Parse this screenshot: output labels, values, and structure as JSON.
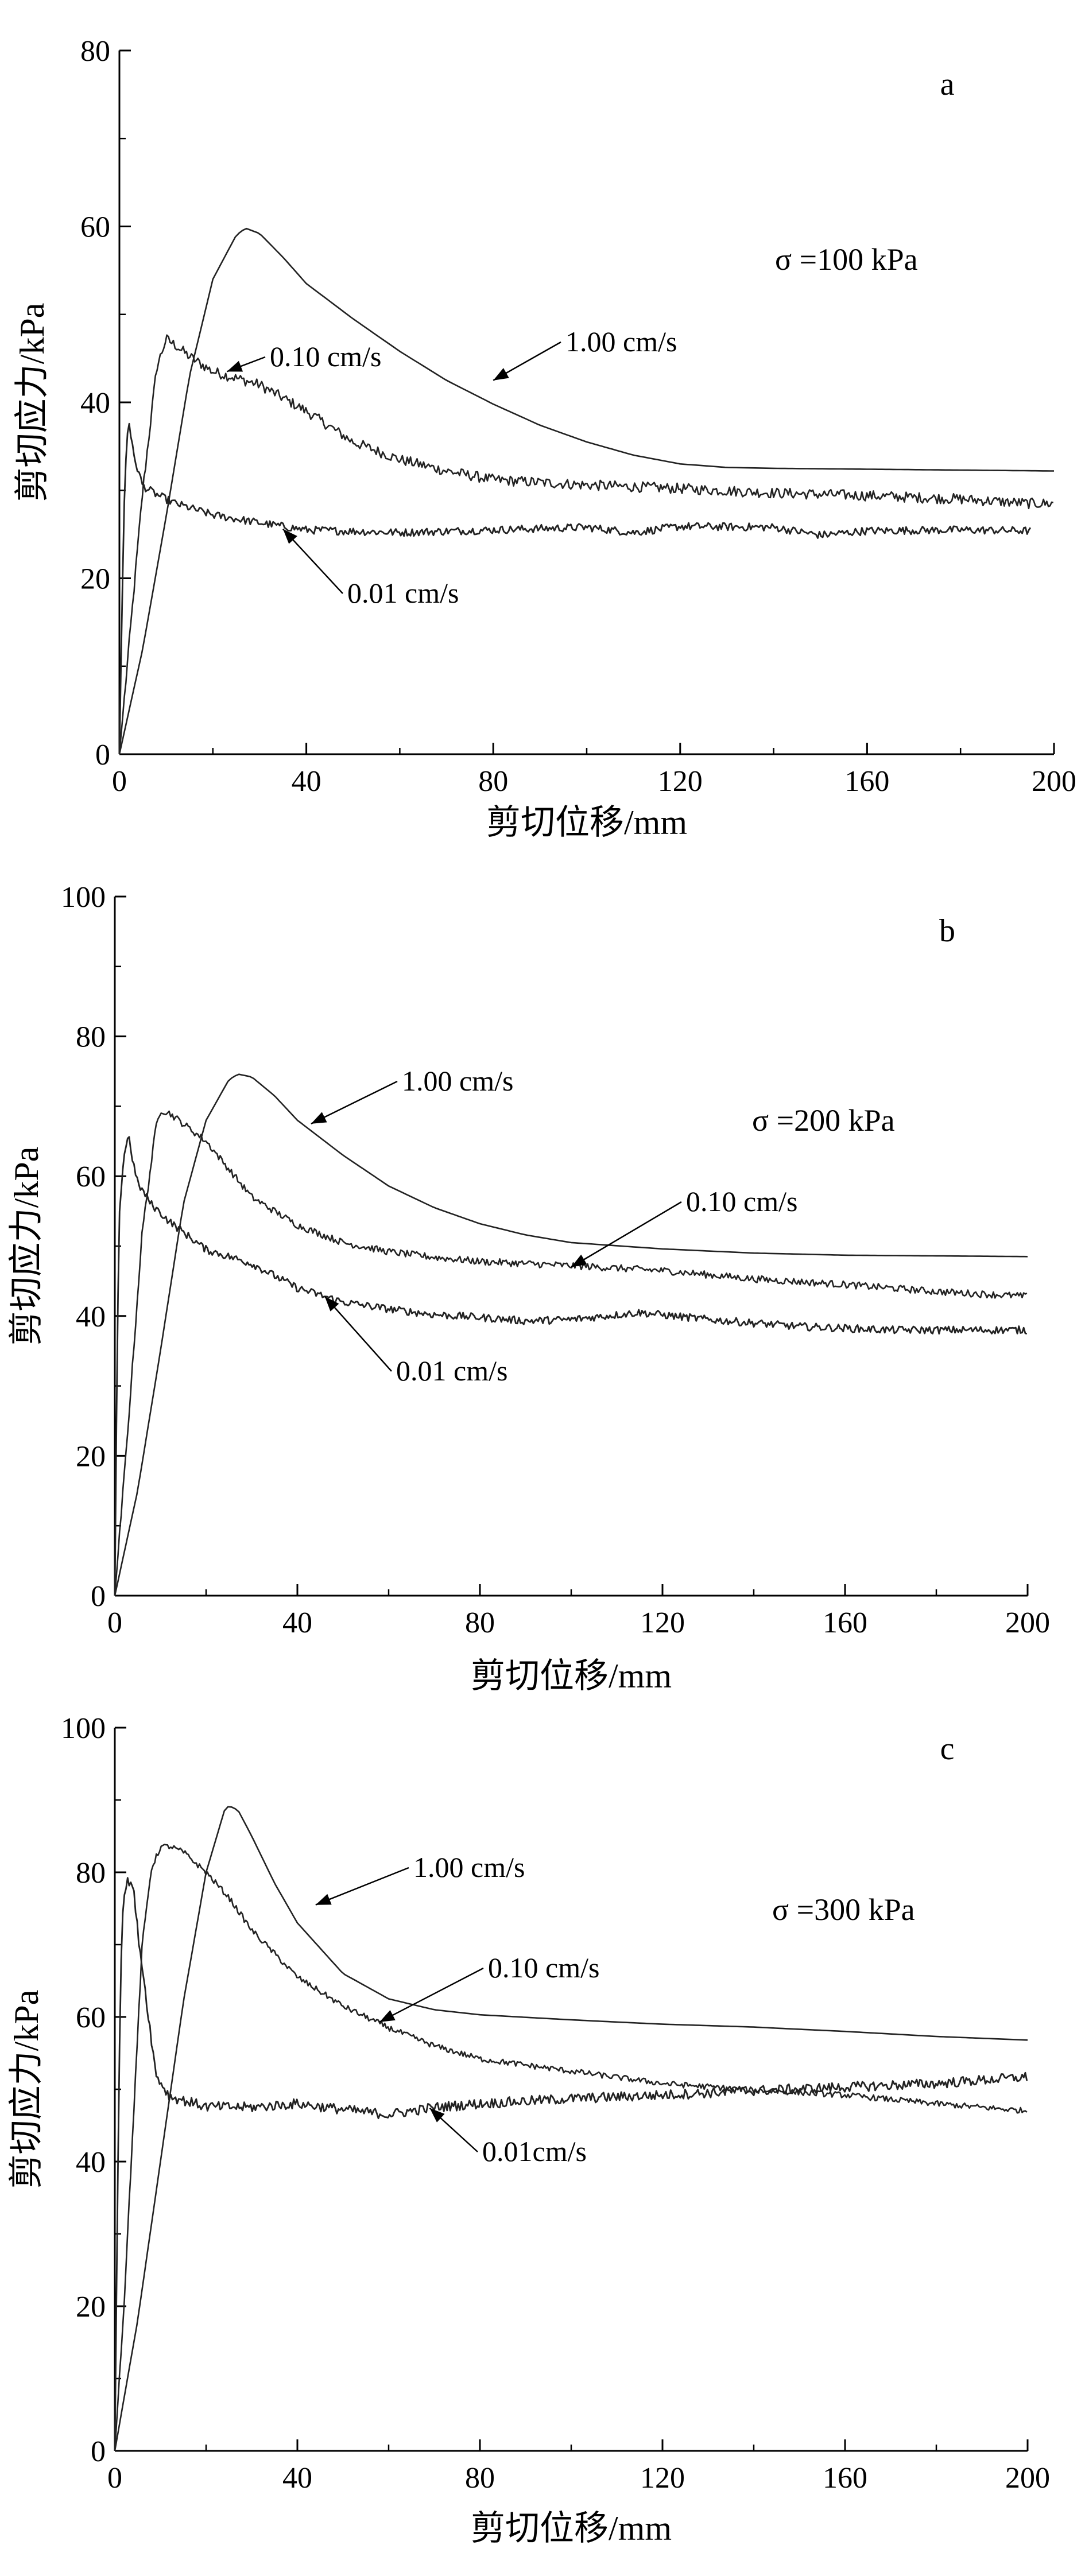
{
  "chart_data": [
    {
      "type": "line",
      "panel_letter": "a",
      "annotation": "σ =100 kPa",
      "xlabel": "剪切位移/mm",
      "ylabel": "剪切应力/kPa",
      "xlim": [
        0,
        200
      ],
      "ylim": [
        0,
        80
      ],
      "xticks": [
        0,
        40,
        80,
        120,
        160,
        200
      ],
      "yticks": [
        0,
        20,
        40,
        60,
        80
      ],
      "grid": false,
      "series": [
        {
          "name": "1.00 cm/s",
          "noise": 0,
          "x": [
            0,
            5,
            10,
            15,
            20,
            25,
            27,
            30,
            35,
            40,
            50,
            60,
            70,
            80,
            90,
            100,
            110,
            120,
            130,
            140,
            160,
            180,
            200
          ],
          "y": [
            0,
            12,
            27,
            43,
            54,
            59,
            59.8,
            59.2,
            56.5,
            53.5,
            49.5,
            45.8,
            42.5,
            39.8,
            37.4,
            35.5,
            34.0,
            33.0,
            32.6,
            32.5,
            32.4,
            32.3,
            32.2
          ]
        },
        {
          "name": "0.10 cm/s",
          "noise": 0.6,
          "x": [
            0,
            2,
            5,
            8,
            10,
            12,
            15,
            20,
            30,
            40,
            50,
            60,
            70,
            80,
            100,
            120,
            140,
            160,
            180,
            195,
            200
          ],
          "y": [
            0,
            12,
            30,
            44,
            47.2,
            46.5,
            45.2,
            43.5,
            42,
            39,
            35.5,
            33.5,
            32.2,
            31.2,
            30.6,
            30.2,
            29.7,
            29.4,
            29.0,
            28.5,
            28.5
          ]
        },
        {
          "name": "0.01 cm/s",
          "noise": 0.45,
          "x": [
            0,
            0.5,
            1,
            1.5,
            2,
            3,
            5,
            8,
            12,
            20,
            30,
            40,
            60,
            80,
            100,
            110,
            120,
            140,
            150,
            160,
            180,
            195
          ],
          "y": [
            0,
            15,
            28,
            35,
            38.2,
            34,
            30.5,
            29.5,
            28.5,
            27.2,
            26.3,
            25.5,
            25.2,
            25.5,
            25.8,
            25.2,
            25.9,
            25.8,
            24.9,
            25.4,
            25.5,
            25.4
          ]
        }
      ],
      "labels": [
        {
          "text": "1.00 cm/s",
          "arrow_to": [
            80,
            42.5
          ]
        },
        {
          "text": "0.10 cm/s",
          "arrow_to": [
            23,
            43.5
          ]
        },
        {
          "text": "0.01 cm/s",
          "arrow_to": [
            35,
            25.6
          ]
        }
      ]
    },
    {
      "type": "line",
      "panel_letter": "b",
      "annotation": "σ =200 kPa",
      "xlabel": "剪切位移/mm",
      "ylabel": "剪切应力/kPa",
      "xlim": [
        0,
        200
      ],
      "ylim": [
        0,
        100
      ],
      "xticks": [
        0,
        40,
        80,
        120,
        160,
        200
      ],
      "yticks": [
        0,
        20,
        40,
        60,
        80,
        100
      ],
      "grid": false,
      "series": [
        {
          "name": "1.00 cm/s",
          "noise": 0,
          "x": [
            0,
            5,
            10,
            15,
            20,
            25,
            27,
            30,
            35,
            40,
            50,
            60,
            70,
            80,
            90,
            100,
            120,
            140,
            160,
            180,
            200
          ],
          "y": [
            0,
            15,
            35,
            56,
            68,
            73.8,
            74.6,
            74.2,
            71.5,
            68,
            63,
            58.6,
            55.5,
            53.2,
            51.6,
            50.5,
            49.6,
            49.0,
            48.7,
            48.6,
            48.5
          ]
        },
        {
          "name": "0.10 cm/s",
          "noise": 0.5,
          "x": [
            0,
            3,
            6,
            9,
            10,
            12,
            15,
            20,
            25,
            30,
            40,
            50,
            60,
            70,
            80,
            100,
            120,
            140,
            160,
            180,
            200
          ],
          "y": [
            0,
            25,
            52,
            67,
            69.5,
            69,
            67.5,
            65,
            61,
            57,
            53,
            50.5,
            49.2,
            48.4,
            47.8,
            47.2,
            46.5,
            45.3,
            44.5,
            43.5,
            42.8
          ]
        },
        {
          "name": "0.01 cm/s",
          "noise": 0.55,
          "x": [
            0,
            0.5,
            1,
            2,
            3,
            4,
            5,
            8,
            12,
            20,
            30,
            40,
            50,
            60,
            70,
            80,
            90,
            100,
            115,
            130,
            150,
            170,
            200
          ],
          "y": [
            0,
            35,
            55,
            63,
            66,
            62,
            59,
            56,
            53.5,
            49.5,
            47.5,
            44,
            42,
            41,
            40.2,
            39.8,
            39.3,
            39.5,
            40.5,
            39.5,
            38.5,
            38.0,
            38.0
          ]
        }
      ],
      "labels": [
        {
          "text": "1.00 cm/s",
          "arrow_to": [
            43,
            67.5
          ]
        },
        {
          "text": "0.10 cm/s",
          "arrow_to": [
            100,
            47.0
          ]
        },
        {
          "text": "0.01 cm/s",
          "arrow_to": [
            46,
            42.8
          ]
        }
      ]
    },
    {
      "type": "line",
      "panel_letter": "c",
      "annotation": "σ =300 kPa",
      "xlabel": "剪切位移/mm",
      "ylabel": "剪切应力/kPa",
      "xlim": [
        0,
        200
      ],
      "ylim": [
        0,
        100
      ],
      "xticks": [
        0,
        40,
        80,
        120,
        160,
        200
      ],
      "yticks": [
        0,
        20,
        40,
        60,
        80,
        100
      ],
      "grid": false,
      "series": [
        {
          "name": "1.00 cm/s",
          "noise": 0,
          "x": [
            0,
            5,
            10,
            15,
            20,
            24,
            25,
            27,
            30,
            35,
            40,
            50,
            60,
            70,
            80,
            100,
            120,
            140,
            160,
            180,
            200
          ],
          "y": [
            0,
            18,
            40,
            62,
            80,
            88.5,
            89.2,
            88.6,
            85,
            78.5,
            73,
            66,
            62.5,
            61,
            60.3,
            59.6,
            59.0,
            58.6,
            58.0,
            57.3,
            56.8
          ]
        },
        {
          "name": "0.10 cm/s",
          "noise": 0.4,
          "x": [
            0,
            2,
            4,
            6,
            8,
            10,
            12,
            15,
            20,
            25,
            30,
            40,
            50,
            60,
            70,
            80,
            100,
            120,
            140,
            160,
            180,
            200
          ],
          "y": [
            0,
            20,
            45,
            70,
            80.5,
            83.5,
            83.6,
            82.8,
            80,
            76.5,
            72,
            65.5,
            61.5,
            58.5,
            56,
            54.2,
            52.5,
            50.8,
            49.9,
            49.2,
            48,
            47.0
          ]
        },
        {
          "name": "0.01cm/s",
          "noise": 0.7,
          "x": [
            0,
            0.5,
            1,
            1.5,
            2,
            3,
            4,
            5,
            7,
            9,
            12,
            20,
            30,
            40,
            50,
            60,
            70,
            80,
            100,
            120,
            140,
            160,
            180,
            200
          ],
          "y": [
            0,
            30,
            55,
            72,
            77,
            79,
            78,
            72,
            62,
            52,
            49,
            47.6,
            47.5,
            48,
            47.2,
            46.5,
            47.5,
            48,
            48.7,
            49.2,
            49.8,
            50.3,
            50.8,
            51.7
          ]
        }
      ],
      "labels": [
        {
          "text": "1.00 cm/s",
          "arrow_to": [
            44,
            75.5
          ]
        },
        {
          "text": "0.10 cm/s",
          "arrow_to": [
            58,
            59.3
          ]
        },
        {
          "text": "0.01cm/s",
          "arrow_to": [
            69,
            47.4
          ]
        }
      ]
    }
  ]
}
